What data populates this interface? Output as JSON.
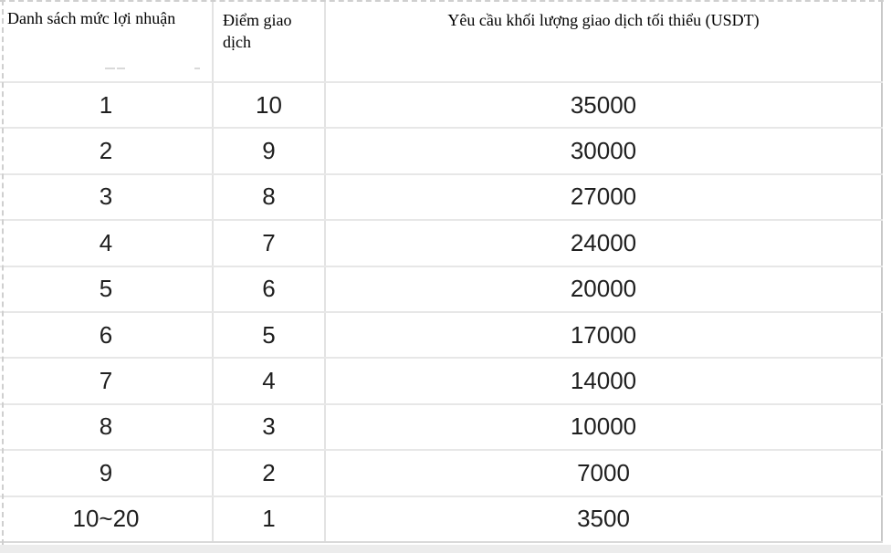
{
  "table": {
    "headers": [
      "Danh sách mức lợi nhuận",
      "Điểm giao dịch",
      "Yêu cầu khối lượng giao dịch tối thiểu (USDT)"
    ],
    "rows": [
      [
        "1",
        "10",
        "35000"
      ],
      [
        "2",
        "9",
        "30000"
      ],
      [
        "3",
        "8",
        "27000"
      ],
      [
        "4",
        "7",
        "24000"
      ],
      [
        "5",
        "6",
        "20000"
      ],
      [
        "6",
        "5",
        "17000"
      ],
      [
        "7",
        "4",
        "14000"
      ],
      [
        "8",
        "3",
        "10000"
      ],
      [
        "9",
        "2",
        "7000"
      ],
      [
        "10~20",
        "1",
        "3500"
      ]
    ]
  },
  "colors": {
    "background": "#ffffff",
    "grid_line": "#e7e7e7",
    "column_line": "#e3e3e3",
    "right_border": "#c8c8c8",
    "dashed_edge": "#cfcfcf",
    "bottom_strip": "#ececec",
    "header_text": "#000000",
    "cell_text": "#1f1f1f"
  }
}
